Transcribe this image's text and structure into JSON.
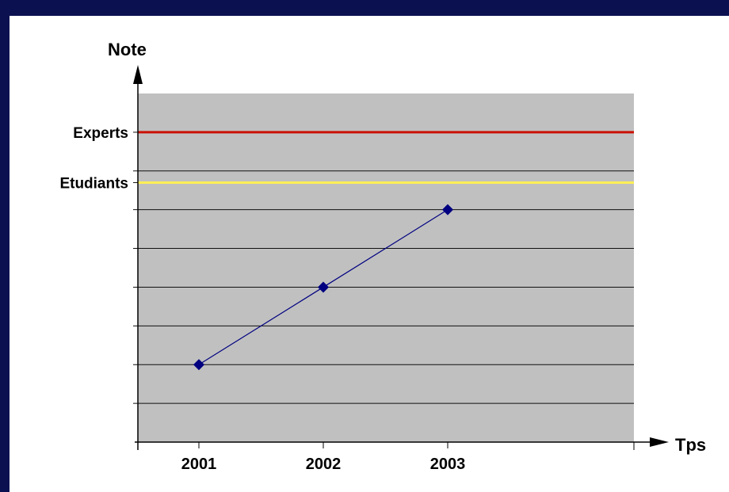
{
  "chart_data": {
    "type": "line",
    "ylabel": "Note",
    "xlabel": "Tps",
    "categories": [
      "2001",
      "2002",
      "2003"
    ],
    "series": [
      {
        "values": [
          2,
          4,
          6
        ],
        "color": "#000080",
        "marker": "diamond"
      }
    ],
    "reference_lines": [
      {
        "label": "Experts",
        "value": 8,
        "color": "#cc1100"
      },
      {
        "label": "Etudiants",
        "value": 6.7,
        "color": "#ffee55"
      }
    ],
    "ylim": [
      0,
      9
    ],
    "y_gridlines": [
      1,
      2,
      3,
      4,
      5,
      6,
      7
    ],
    "plot_background": "#c0c0c0",
    "grid": true
  }
}
